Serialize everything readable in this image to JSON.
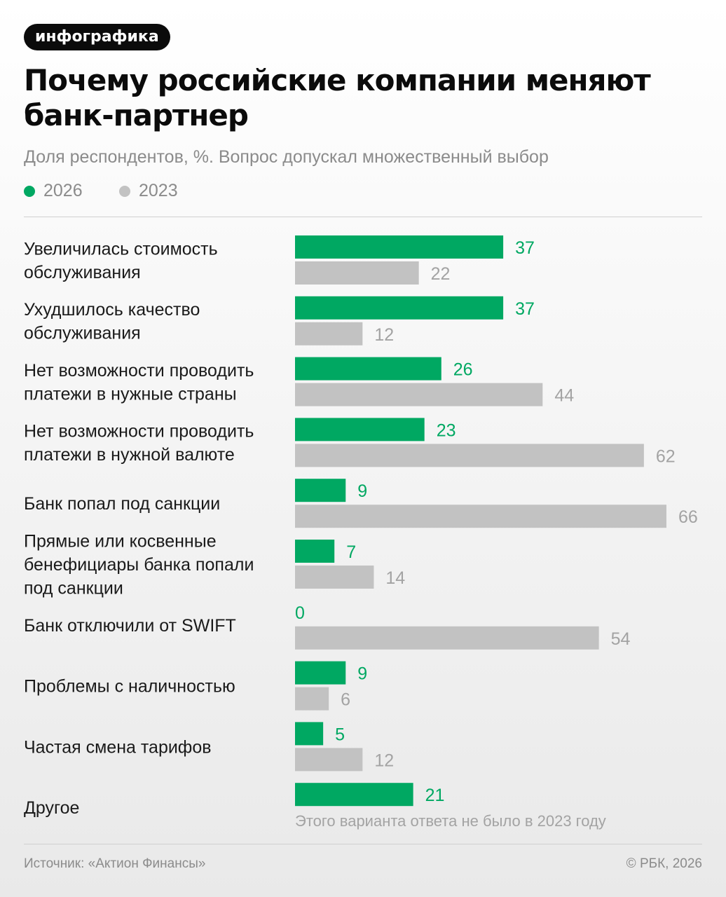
{
  "badge": "инфографика",
  "colors": {
    "series_2026": "#00a862",
    "series_2023": "#c2c2c2"
  },
  "chart_data": {
    "type": "bar",
    "orientation": "horizontal",
    "title": "Почему российские компании меняют банк-партнер",
    "subtitle": "Доля респондентов, %. Вопрос допускал множественный выбор",
    "legend_position": "top-left",
    "xlim": [
      0,
      66
    ],
    "categories": [
      [
        "Увеличилась стоимость",
        "обслуживания"
      ],
      [
        "Ухудшилось качество",
        "обслуживания"
      ],
      [
        "Нет возможности проводить",
        "платежи в нужные страны"
      ],
      [
        "Нет возможности проводить",
        "платежи в нужной валюте"
      ],
      [
        "Банк попал под санкции"
      ],
      [
        "Прямые или косвенные",
        "бенефициары банка попали",
        "под санкции"
      ],
      [
        "Банк отключили от SWIFT"
      ],
      [
        "Проблемы с наличностью"
      ],
      [
        "Частая смена тарифов"
      ],
      [
        "Другое"
      ]
    ],
    "series": [
      {
        "name": "2026",
        "values": [
          37,
          37,
          26,
          23,
          9,
          7,
          0,
          9,
          5,
          21
        ]
      },
      {
        "name": "2023",
        "values": [
          22,
          12,
          44,
          62,
          66,
          14,
          54,
          6,
          12,
          null
        ]
      }
    ],
    "annotations": [
      {
        "category_index": 9,
        "series": "2023",
        "text": "Этого варианта ответа не было в 2023 году"
      }
    ]
  },
  "footer": {
    "source": "Источник: «Актион Финансы»",
    "copyright": "© РБК, 2026"
  }
}
